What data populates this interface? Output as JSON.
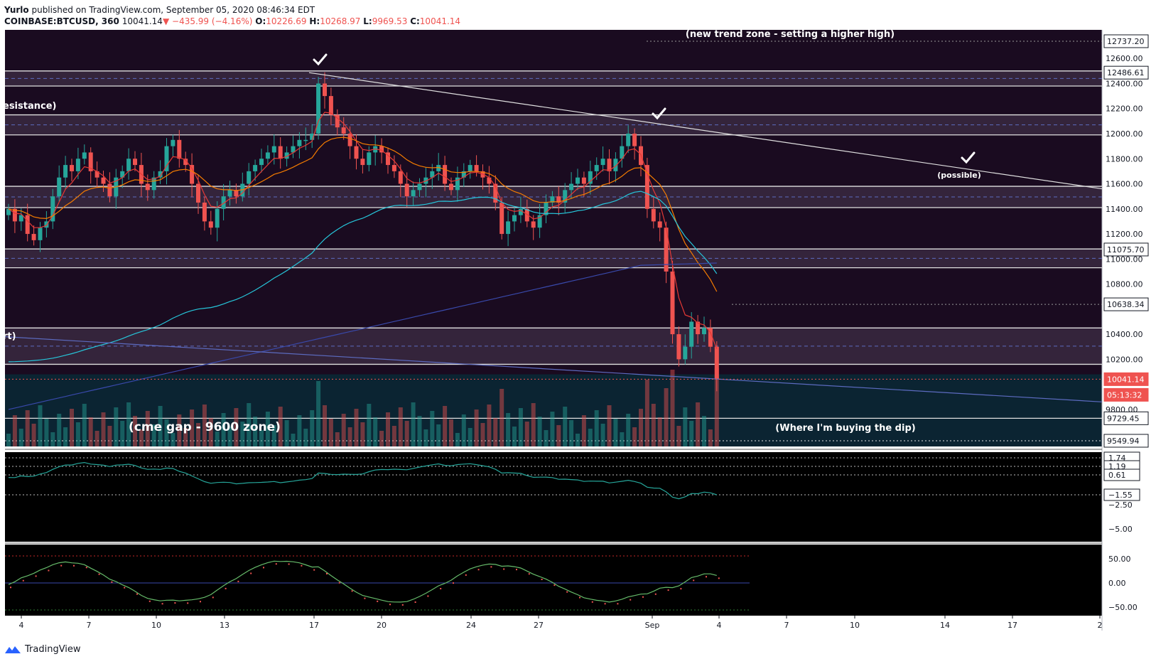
{
  "header": {
    "author": "Yurlo",
    "published": "published on TradingView.com, September 05, 2020 08:46:34 EDT",
    "symbol": "COINBASE:BTCUSD, 360",
    "last": "10041.14",
    "change": "−435.99 (−4.16%)",
    "o_label": "O:",
    "o": "10226.69",
    "h_label": "H:",
    "h": "10268.97",
    "l_label": "L:",
    "l": "9969.53",
    "c_label": "C:",
    "c": "10041.14"
  },
  "footer": {
    "brand": "TradingView"
  },
  "colors": {
    "bg_main": "#1a0b20",
    "bg_lower": "#0b2432",
    "bg_ind": "#000000",
    "zone": "#4a3a52",
    "up": "#26a69a",
    "down": "#ef5350",
    "ema_red": "#e53935",
    "ema_orange": "#f57c00",
    "ema_teal": "#26c6da",
    "ema_blue": "#3949ab"
  },
  "chart_data": {
    "type": "candlestick",
    "title": "COINBASE:BTCUSD, 360",
    "ylim": [
      9500,
      12800
    ],
    "y_ticks": [
      "12737.20",
      "12600.00",
      "12486.61",
      "12400.00",
      "12200.00",
      "12000.00",
      "11800.00",
      "11600.00",
      "11400.00",
      "11200.00",
      "11075.70",
      "11000.00",
      "10800.00",
      "10638.34",
      "10400.00",
      "10200.00",
      "10041.14",
      "9800.00",
      "9729.45",
      "9549.94"
    ],
    "price_badges": [
      {
        "value": "10041.14",
        "style": "red"
      },
      {
        "value": "05:13:32",
        "style": "red"
      },
      {
        "value": "12737.20",
        "style": "white"
      },
      {
        "value": "12486.61",
        "style": "white"
      },
      {
        "value": "11075.70",
        "style": "white"
      },
      {
        "value": "10638.34",
        "style": "white"
      },
      {
        "value": "9729.45",
        "style": "white"
      },
      {
        "value": "9549.94",
        "style": "white"
      }
    ],
    "x_ticks": [
      "4",
      "7",
      "10",
      "13",
      "17",
      "20",
      "24",
      "27",
      "Sep",
      "4",
      "7",
      "10",
      "14",
      "17",
      "2"
    ],
    "annotations": [
      {
        "text": "(new trend zone - setting a higher high)"
      },
      {
        "text": "esistance)"
      },
      {
        "text": "(possible)"
      },
      {
        "text": "rt)"
      },
      {
        "text": "(cme gap - 9600 zone)"
      },
      {
        "text": "(Where I'm buying the dip)"
      }
    ],
    "zones": [
      {
        "from": 12380,
        "to": 12500
      },
      {
        "from": 11990,
        "to": 12150
      },
      {
        "from": 11410,
        "to": 11580
      },
      {
        "from": 10930,
        "to": 11080
      },
      {
        "from": 10160,
        "to": 10450
      }
    ],
    "close_series": [
      11400,
      11300,
      11350,
      11200,
      11150,
      11250,
      11300,
      11500,
      11650,
      11750,
      11700,
      11800,
      11850,
      11700,
      11650,
      11600,
      11500,
      11650,
      11700,
      11800,
      11750,
      11600,
      11550,
      11650,
      11700,
      11900,
      11950,
      11800,
      11750,
      11600,
      11450,
      11300,
      11250,
      11400,
      11500,
      11550,
      11500,
      11600,
      11700,
      11750,
      11800,
      11850,
      11900,
      11800,
      11850,
      11900,
      11950,
      11950,
      12000,
      12400,
      12300,
      12150,
      12050,
      12000,
      11900,
      11800,
      11750,
      11850,
      11900,
      11850,
      11750,
      11700,
      11600,
      11500,
      11550,
      11600,
      11650,
      11700,
      11750,
      11600,
      11550,
      11650,
      11700,
      11750,
      11700,
      11650,
      11600,
      11450,
      11200,
      11300,
      11350,
      11400,
      11300,
      11250,
      11350,
      11450,
      11500,
      11450,
      11550,
      11600,
      11650,
      11600,
      11700,
      11750,
      11800,
      11700,
      11800,
      11900,
      12000,
      11900,
      11750,
      11400,
      11300,
      11250,
      10900,
      10400,
      10200,
      10300,
      10500,
      10400,
      10450,
      10300,
      10041.14
    ],
    "macd": {
      "y_ticks": [
        "1.74",
        "1.19",
        "0.61",
        "−1.55",
        "−2.50",
        "−5.00"
      ],
      "badges": [
        "1.74",
        "1.19",
        "0.61",
        "−1.55"
      ]
    },
    "oscillator": {
      "y_ticks": [
        "50.00",
        "0.00",
        "−50.00"
      ]
    }
  }
}
